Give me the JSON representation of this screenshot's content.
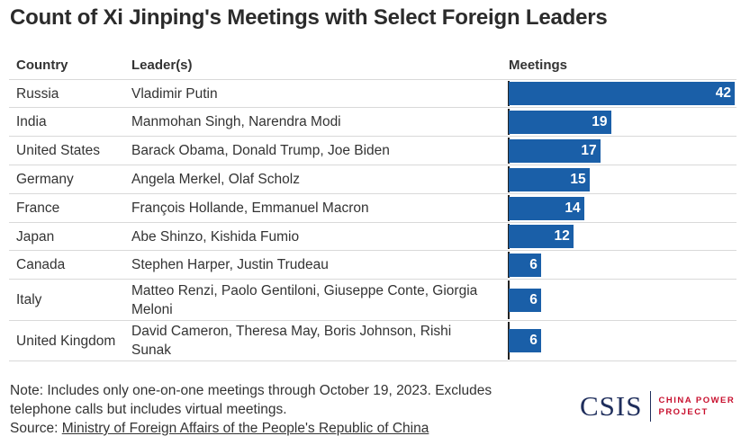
{
  "title": "Count of Xi Jinping's Meetings with Select Foreign Leaders",
  "headers": {
    "country": "Country",
    "leaders": "Leader(s)",
    "meetings": "Meetings"
  },
  "colors": {
    "bar": "#1a5fa8",
    "logo_text": "#1f2e5c",
    "logo_sub": "#c8102e"
  },
  "chart_data": {
    "type": "table",
    "title": "Count of Xi Jinping's Meetings with Select Foreign Leaders",
    "columns": [
      "Country",
      "Leader(s)",
      "Meetings"
    ],
    "rows": [
      {
        "country": "Russia",
        "leaders": "Vladimir Putin",
        "meetings": 42
      },
      {
        "country": "India",
        "leaders": "Manmohan Singh, Narendra Modi",
        "meetings": 19
      },
      {
        "country": "United States",
        "leaders": "Barack Obama, Donald Trump, Joe Biden",
        "meetings": 17
      },
      {
        "country": "Germany",
        "leaders": "Angela Merkel, Olaf Scholz",
        "meetings": 15
      },
      {
        "country": "France",
        "leaders": "François Hollande, Emmanuel Macron",
        "meetings": 14
      },
      {
        "country": "Japan",
        "leaders": "Abe Shinzo, Kishida Fumio",
        "meetings": 12
      },
      {
        "country": "Canada",
        "leaders": "Stephen Harper, Justin Trudeau",
        "meetings": 6
      },
      {
        "country": "Italy",
        "leaders": "Matteo Renzi, Paolo Gentiloni, Giuseppe Conte, Giorgia Meloni",
        "meetings": 6
      },
      {
        "country": "United Kingdom",
        "leaders": "David Cameron, Theresa May, Boris Johnson, Rishi Sunak",
        "meetings": 6
      }
    ],
    "value_column": "Meetings",
    "xlim": [
      0,
      42
    ]
  },
  "footer": {
    "note": "Note: Includes only one-on-one meetings through October 19, 2023. Excludes telephone calls but includes virtual meetings.",
    "source_label": "Source: ",
    "source_link": "Ministry of Foreign Affairs of the People's Republic of China"
  },
  "logo": {
    "main": "CSIS",
    "sub_line1": "CHINA POWER",
    "sub_line2": "PROJECT"
  }
}
